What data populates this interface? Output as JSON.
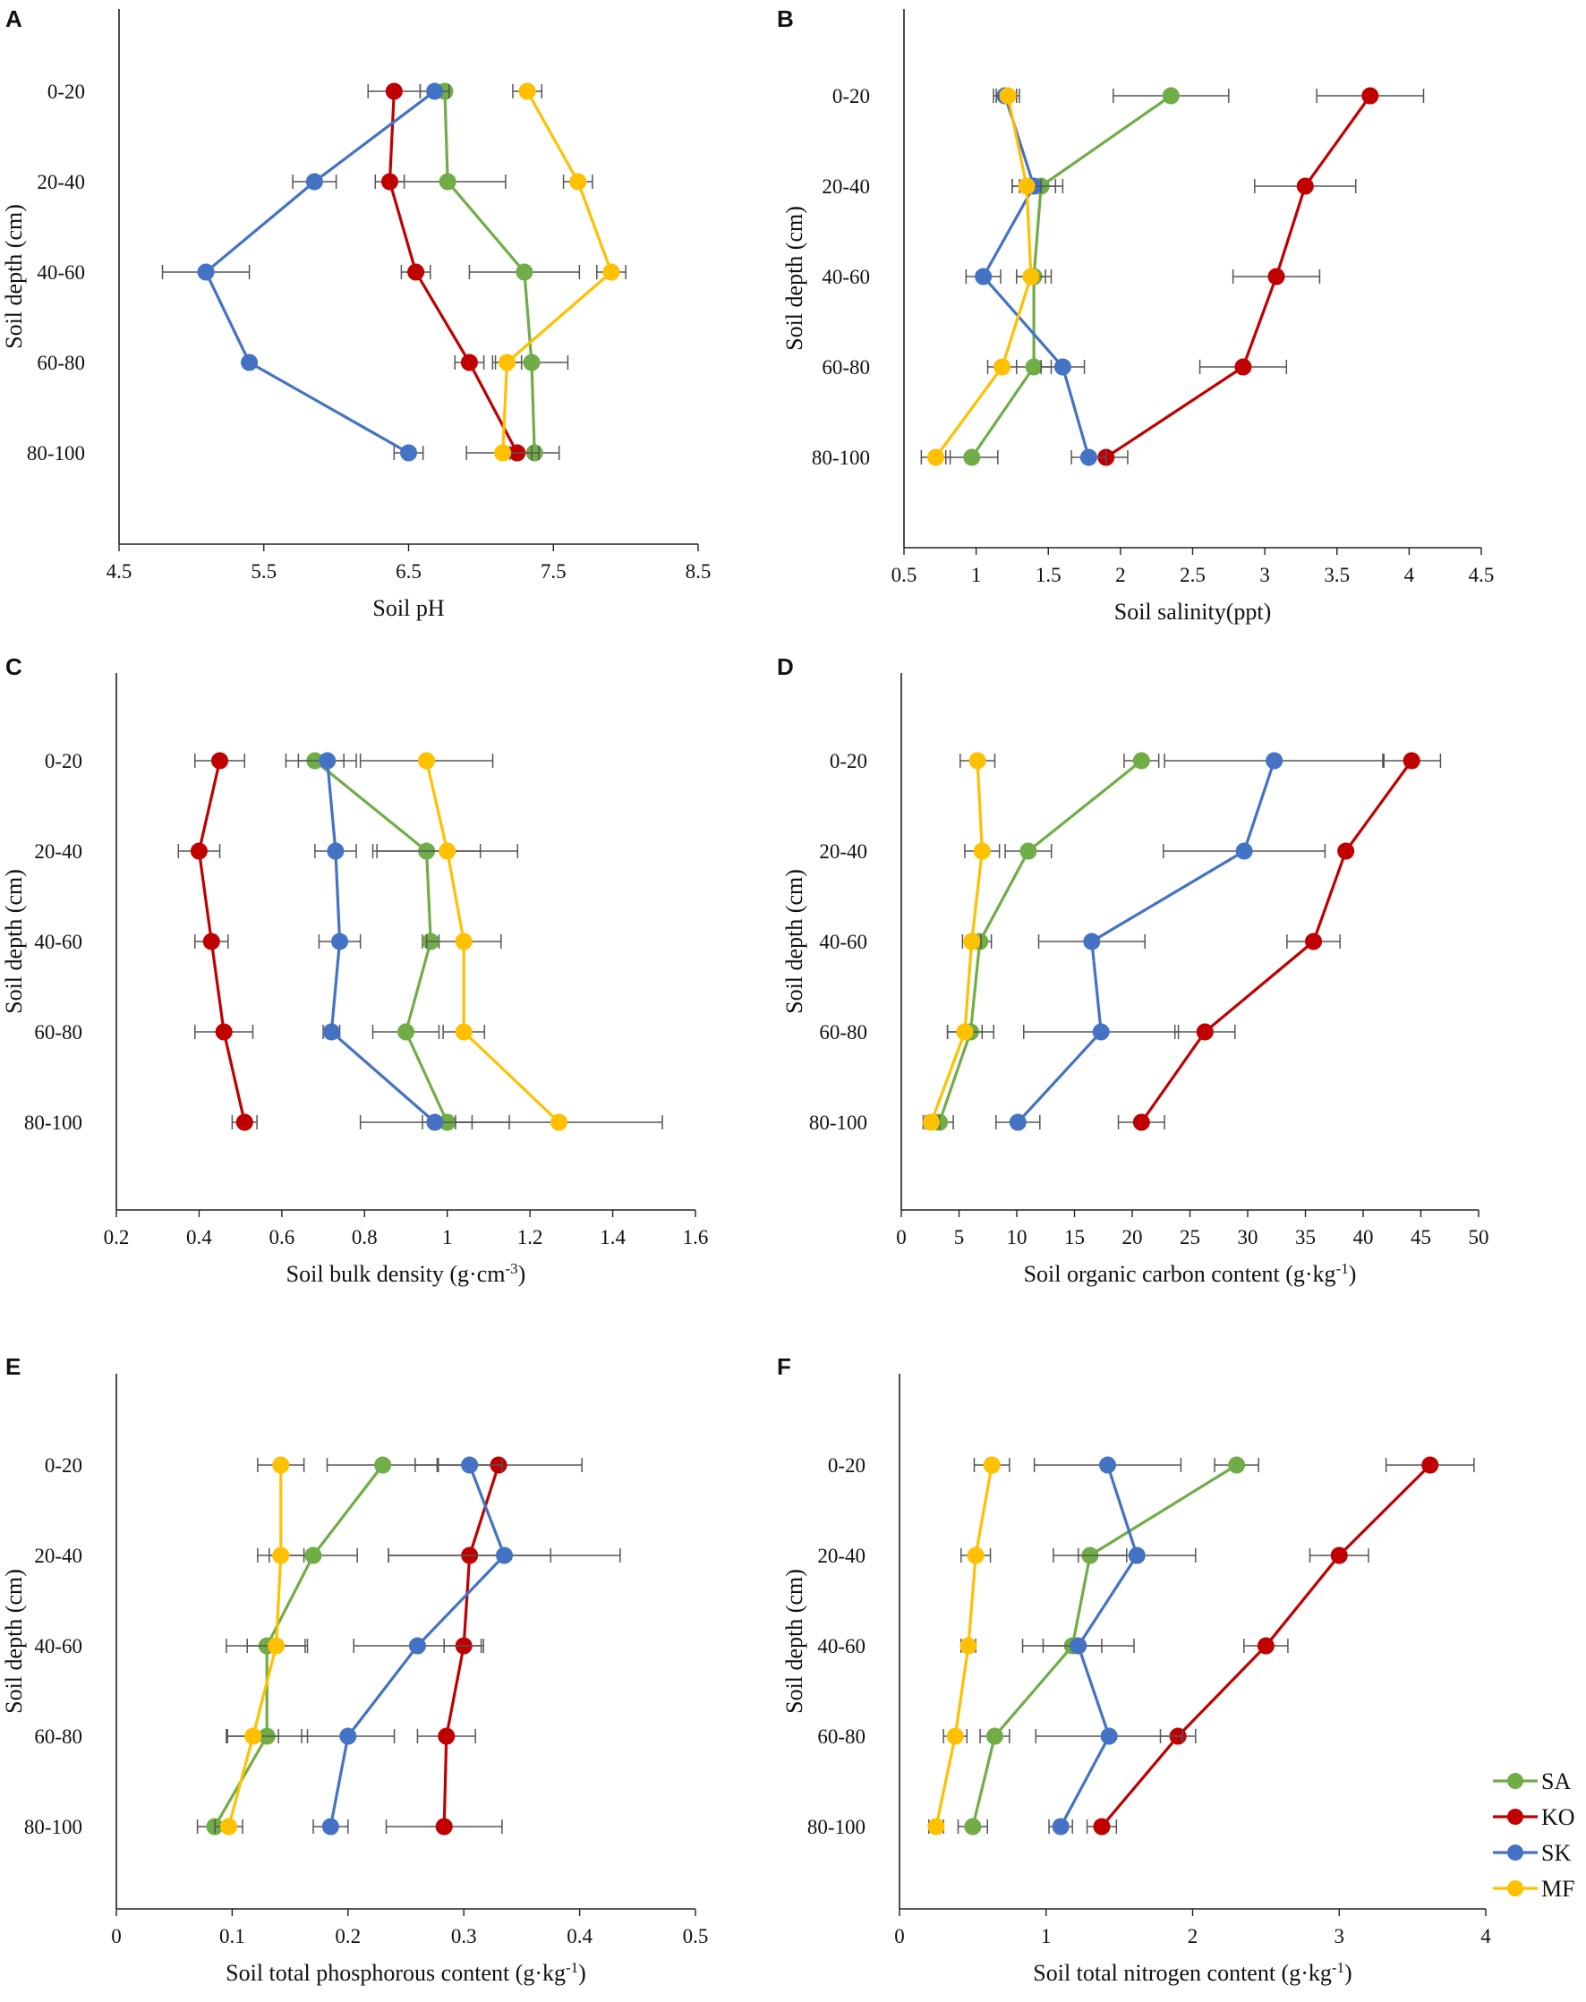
{
  "figure": {
    "series_colors": {
      "SA": "#70ad47",
      "KO": "#c00000",
      "SK": "#4472c4",
      "MF": "#ffc000"
    },
    "legend": [
      "SA",
      "KO",
      "SK",
      "MF"
    ]
  },
  "chart_data": [
    {
      "panel": "A",
      "type": "line",
      "xlabel": "Soil pH",
      "ylabel": "Soil depth (cm)",
      "xlim": [
        4.5,
        8.5
      ],
      "xticks": [
        "4.5",
        "5.5",
        "6.5",
        "7.5",
        "8.5"
      ],
      "categories": [
        "0-20",
        "20-40",
        "40-60",
        "60-80",
        "80-100"
      ],
      "series": [
        {
          "name": "SA",
          "values": [
            6.75,
            6.77,
            7.3,
            7.35,
            7.37
          ],
          "errors": [
            0,
            0.4,
            0.38,
            0.25,
            0.17
          ]
        },
        {
          "name": "KO",
          "values": [
            6.4,
            6.37,
            6.55,
            6.92,
            7.25
          ],
          "errors": [
            0.18,
            0.1,
            0.1,
            0.1,
            0.1
          ]
        },
        {
          "name": "SK",
          "values": [
            6.68,
            5.85,
            5.1,
            5.4,
            6.5
          ],
          "errors": [
            0.1,
            0.15,
            0.3,
            0,
            0.1
          ]
        },
        {
          "name": "MF",
          "values": [
            7.32,
            7.67,
            7.9,
            7.18,
            7.15
          ],
          "errors": [
            0.1,
            0.1,
            0.1,
            0.1,
            0.25
          ]
        }
      ]
    },
    {
      "panel": "B",
      "type": "line",
      "xlabel": "Soil salinity(ppt)",
      "ylabel": "Soil depth (cm)",
      "xlim": [
        0.5,
        4.5
      ],
      "xticks": [
        "0.5",
        "1",
        "1.5",
        "2",
        "2.5",
        "3",
        "3.5",
        "4",
        "4.5"
      ],
      "categories": [
        "0-20",
        "20-40",
        "40-60",
        "60-80",
        "80-100"
      ],
      "series": [
        {
          "name": "SA",
          "values": [
            2.35,
            1.45,
            1.4,
            1.4,
            0.97
          ],
          "errors": [
            0.4,
            0.15,
            0.12,
            0.12,
            0.18
          ]
        },
        {
          "name": "KO",
          "values": [
            3.73,
            3.28,
            3.08,
            2.85,
            1.9
          ],
          "errors": [
            0.37,
            0.35,
            0.3,
            0.3,
            0.15
          ]
        },
        {
          "name": "SK",
          "values": [
            1.2,
            1.4,
            1.05,
            1.6,
            1.78
          ],
          "errors": [
            0.08,
            0.15,
            0.12,
            0.15,
            0.12
          ]
        },
        {
          "name": "MF",
          "values": [
            1.22,
            1.35,
            1.38,
            1.18,
            0.72
          ],
          "errors": [
            0.08,
            0.1,
            0.1,
            0.1,
            0.1
          ]
        }
      ]
    },
    {
      "panel": "C",
      "type": "line",
      "xlabel": "Soil bulk density (g·cm",
      "xlabel_sup": "-3",
      "xlabel_tail": ")",
      "ylabel": "Soil depth (cm)",
      "xlim": [
        0.2,
        1.6
      ],
      "xticks": [
        "0.2",
        "0.4",
        "0.6",
        "0.8",
        "1",
        "1.2",
        "1.4",
        "1.6"
      ],
      "categories": [
        "0-20",
        "20-40",
        "40-60",
        "60-80",
        "80-100"
      ],
      "series": [
        {
          "name": "SA",
          "values": [
            0.68,
            0.95,
            0.96,
            0.9,
            1.0
          ],
          "errors": [
            0.07,
            0.13,
            0.02,
            0.08,
            0.06
          ]
        },
        {
          "name": "KO",
          "values": [
            0.45,
            0.4,
            0.43,
            0.46,
            0.51
          ],
          "errors": [
            0.06,
            0.05,
            0.04,
            0.07,
            0.03
          ]
        },
        {
          "name": "SK",
          "values": [
            0.71,
            0.73,
            0.74,
            0.72,
            0.97
          ],
          "errors": [
            0.07,
            0.05,
            0.05,
            0.02,
            0.18
          ]
        },
        {
          "name": "MF",
          "values": [
            0.95,
            1.0,
            1.04,
            1.04,
            1.27
          ],
          "errors": [
            0.16,
            0.17,
            0.09,
            0.05,
            0.25
          ]
        }
      ]
    },
    {
      "panel": "D",
      "type": "line",
      "xlabel": "Soil organic carbon content (g·kg",
      "xlabel_sup": "-1",
      "xlabel_tail": ")",
      "ylabel": "Soil depth (cm)",
      "xlim": [
        0,
        50
      ],
      "xticks": [
        "0",
        "5",
        "10",
        "15",
        "20",
        "25",
        "30",
        "35",
        "40",
        "45",
        "50"
      ],
      "categories": [
        "0-20",
        "20-40",
        "40-60",
        "60-80",
        "80-100"
      ],
      "series": [
        {
          "name": "SA",
          "values": [
            20.8,
            11.0,
            6.8,
            6.0,
            3.3
          ],
          "errors": [
            1.5,
            2.0,
            1.0,
            2.0,
            1.2
          ]
        },
        {
          "name": "KO",
          "values": [
            44.2,
            38.5,
            35.7,
            26.3,
            20.8
          ],
          "errors": [
            2.5,
            0,
            2.3,
            2.6,
            2.0
          ]
        },
        {
          "name": "SK",
          "values": [
            32.3,
            29.7,
            16.5,
            17.3,
            10.1
          ],
          "errors": [
            9.5,
            7.0,
            4.6,
            6.7,
            1.9
          ]
        },
        {
          "name": "MF",
          "values": [
            6.6,
            7.0,
            6.1,
            5.5,
            2.6
          ],
          "errors": [
            1.5,
            1.5,
            0.8,
            1.5,
            0.7
          ]
        }
      ]
    },
    {
      "panel": "E",
      "type": "line",
      "xlabel": "Soil total phosphorous content (g·kg",
      "xlabel_sup": "-1",
      "xlabel_tail": ")",
      "ylabel": "Soil depth (cm)",
      "xlim": [
        0,
        0.5
      ],
      "xticks": [
        "0",
        "0.1",
        "0.2",
        "0.3",
        "0.4",
        "0.5"
      ],
      "categories": [
        "0-20",
        "20-40",
        "40-60",
        "60-80",
        "80-100"
      ],
      "series": [
        {
          "name": "SA",
          "values": [
            0.23,
            0.17,
            0.13,
            0.13,
            0.085
          ],
          "errors": [
            0.048,
            0.038,
            0.035,
            0.035,
            0.015
          ]
        },
        {
          "name": "KO",
          "values": [
            0.33,
            0.305,
            0.3,
            0.285,
            0.283
          ],
          "errors": [
            0.072,
            0.07,
            0.017,
            0.025,
            0.05
          ]
        },
        {
          "name": "SK",
          "values": [
            0.305,
            0.335,
            0.26,
            0.2,
            0.185
          ],
          "errors": [
            0.028,
            0.1,
            0.055,
            0.04,
            0.015
          ]
        },
        {
          "name": "MF",
          "values": [
            0.142,
            0.142,
            0.138,
            0.118,
            0.097
          ],
          "errors": [
            0.02,
            0.02,
            0.025,
            0.022,
            0.012
          ]
        }
      ]
    },
    {
      "panel": "F",
      "type": "line",
      "xlabel": "Soil total nitrogen content (g·kg",
      "xlabel_sup": "-1",
      "xlabel_tail": ")",
      "ylabel": "Soil depth (cm)",
      "xlim": [
        0,
        4
      ],
      "xticks": [
        "0",
        "1",
        "2",
        "3",
        "4"
      ],
      "categories": [
        "0-20",
        "20-40",
        "40-60",
        "60-80",
        "80-100"
      ],
      "series": [
        {
          "name": "SA",
          "values": [
            2.3,
            1.3,
            1.18,
            0.65,
            0.5
          ],
          "errors": [
            0.15,
            0.25,
            0.2,
            0.1,
            0.1
          ]
        },
        {
          "name": "KO",
          "values": [
            3.62,
            3.0,
            2.5,
            1.9,
            1.38
          ],
          "errors": [
            0.3,
            0.2,
            0.15,
            0.12,
            0.1
          ]
        },
        {
          "name": "SK",
          "values": [
            1.42,
            1.62,
            1.22,
            1.43,
            1.1
          ],
          "errors": [
            0.5,
            0.4,
            0.38,
            0.5,
            0.08
          ]
        },
        {
          "name": "MF",
          "values": [
            0.63,
            0.52,
            0.47,
            0.38,
            0.25
          ],
          "errors": [
            0.12,
            0.1,
            0.05,
            0.08,
            0.05
          ]
        }
      ]
    }
  ]
}
